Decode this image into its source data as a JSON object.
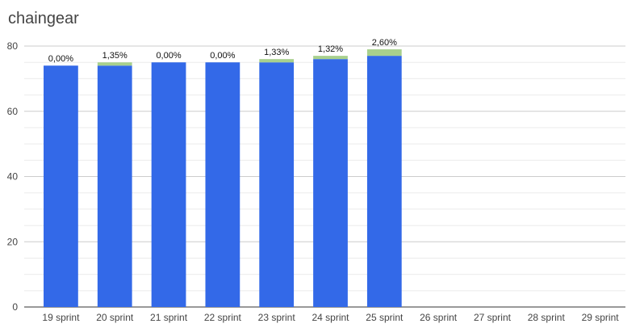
{
  "chart_data": {
    "type": "bar",
    "stacked": true,
    "title": "chaingear",
    "categories": [
      "19 sprint",
      "20 sprint",
      "21 sprint",
      "22 sprint",
      "23 sprint",
      "24 sprint",
      "25 sprint",
      "26 sprint",
      "27 sprint",
      "28 sprint",
      "29 sprint"
    ],
    "series": [
      {
        "color": "#3369e8",
        "values": [
          74,
          74,
          75,
          75,
          75,
          76,
          77,
          null,
          null,
          null,
          null
        ]
      },
      {
        "color": "#a8d08d",
        "values": [
          0,
          1,
          0,
          0,
          1,
          1,
          2,
          null,
          null,
          null,
          null
        ]
      }
    ],
    "data_labels": [
      "0,00%",
      "1,35%",
      "0,00%",
      "0,00%",
      "1,33%",
      "1,32%",
      "2,60%",
      "",
      "",
      "",
      ""
    ],
    "ylim": [
      0,
      80
    ],
    "yticks": [
      0,
      20,
      40,
      60,
      80
    ],
    "grid": true,
    "legend": "none"
  }
}
